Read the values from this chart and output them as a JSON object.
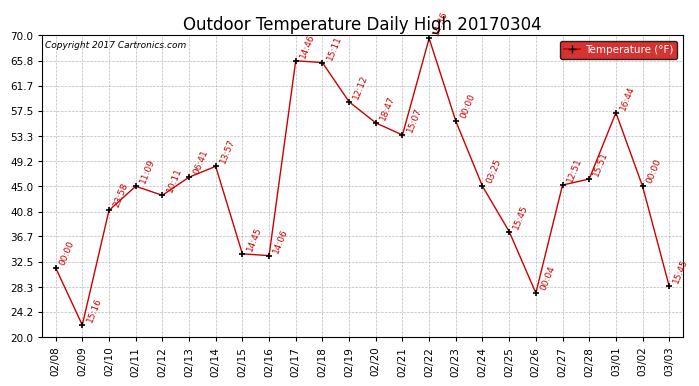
{
  "title": "Outdoor Temperature Daily High 20170304",
  "copyright": "Copyright 2017 Cartronics.com",
  "legend_label": "Temperature (°F)",
  "x_labels": [
    "02/08",
    "02/09",
    "02/10",
    "02/11",
    "02/12",
    "02/13",
    "02/14",
    "02/15",
    "02/16",
    "02/17",
    "02/18",
    "02/19",
    "02/20",
    "02/21",
    "02/22",
    "02/23",
    "02/24",
    "02/25",
    "02/26",
    "02/27",
    "02/28",
    "03/01",
    "03/02",
    "03/03"
  ],
  "temps": [
    31.5,
    22.0,
    41.0,
    45.0,
    43.5,
    46.5,
    48.3,
    33.8,
    33.5,
    65.8,
    65.5,
    59.0,
    55.5,
    53.5,
    69.5,
    55.8,
    45.0,
    37.5,
    27.3,
    45.2,
    46.2,
    57.2,
    45.0,
    28.4
  ],
  "time_labels": [
    "00:00",
    "15:16",
    "23:58",
    "11:09",
    "10:11",
    "06:41",
    "13:57",
    "14:45",
    "14:06",
    "14:46",
    "15:11",
    "12:12",
    "18:47",
    "15:07",
    "14:36",
    "00:00",
    "03:25",
    "15:45",
    "00:04",
    "12:51",
    "15:51",
    "16:44",
    "00:00",
    "15:45"
  ],
  "ylim_min": 20.0,
  "ylim_max": 70.0,
  "yticks": [
    20.0,
    24.2,
    28.3,
    32.5,
    36.7,
    40.8,
    45.0,
    49.2,
    53.3,
    57.5,
    61.7,
    65.8,
    70.0
  ],
  "line_color": "#cc0000",
  "bg_color": "#ffffff",
  "grid_color": "#bbbbbb",
  "title_fontsize": 12,
  "tick_fontsize": 7.5,
  "annot_fontsize": 6.5,
  "legend_facecolor": "#cc0000",
  "legend_textcolor": "#ffffff"
}
